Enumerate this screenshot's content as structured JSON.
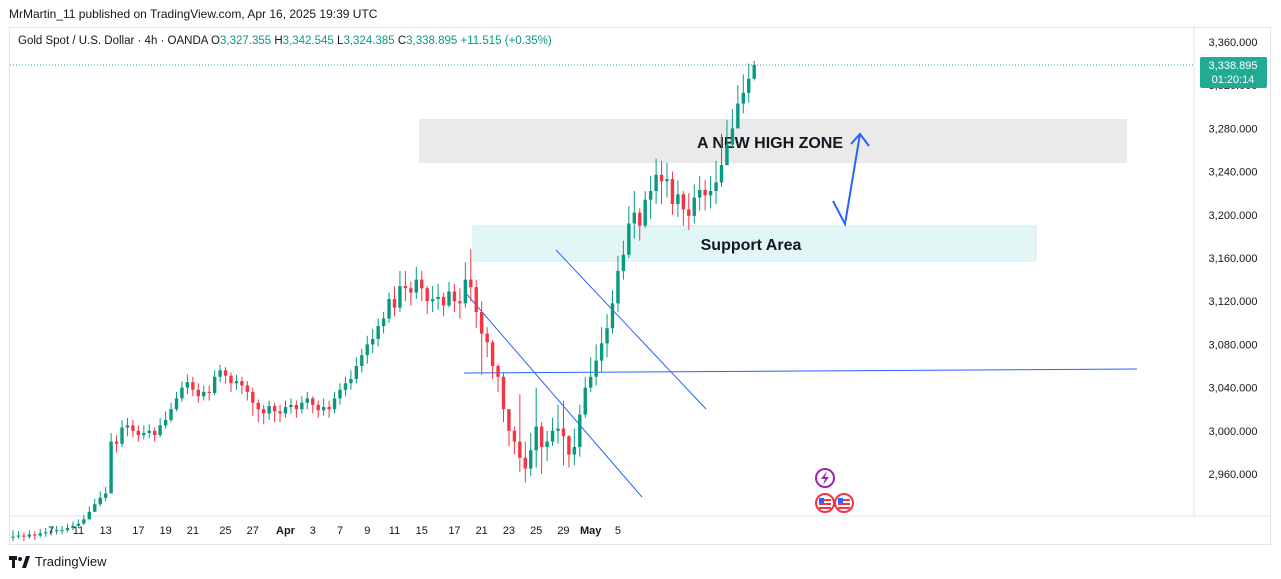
{
  "header": {
    "published_by": "MrMartin_11 published on TradingView.com, Apr 16, 2025 19:39 UTC"
  },
  "legend": {
    "symbol": "Gold Spot / U.S. Dollar · 4h · OANDA",
    "open_key": "O",
    "open": "3,327.355",
    "high_key": "H",
    "high": "3,342.545",
    "low_key": "L",
    "low": "3,324.385",
    "close_key": "C",
    "close": "3,338.895",
    "change": "+11.515 (+0.35%)"
  },
  "price_tag": {
    "price": "3,338.895",
    "countdown": "01:20:14"
  },
  "annotations": {
    "high_zone": "A NEW HIGH ZONE",
    "support": "Support Area"
  },
  "footer": {
    "brand": "TradingView"
  },
  "colors": {
    "up": "#089981",
    "down": "#f23645",
    "accent": "#2962ff",
    "price_tag": "#22ab94"
  },
  "chart_data": {
    "type": "candlestick",
    "ylim": [
      2925,
      3370
    ],
    "y_ticks": [
      "3,360.000",
      "3,320.000",
      "3,280.000",
      "3,240.000",
      "3,200.000",
      "3,160.000",
      "3,120.000",
      "3,080.000",
      "3,040.000",
      "3,000.000",
      "2,960.000"
    ],
    "x_ticks": [
      {
        "label": "7",
        "i": 7
      },
      {
        "label": "11",
        "i": 12
      },
      {
        "label": "13",
        "i": 17
      },
      {
        "label": "17",
        "i": 23
      },
      {
        "label": "19",
        "i": 28
      },
      {
        "label": "21",
        "i": 33
      },
      {
        "label": "25",
        "i": 39
      },
      {
        "label": "27",
        "i": 44
      },
      {
        "label": "Apr",
        "i": 50
      },
      {
        "label": "3",
        "i": 55
      },
      {
        "label": "7",
        "i": 60
      },
      {
        "label": "9",
        "i": 65
      },
      {
        "label": "11",
        "i": 70
      },
      {
        "label": "15",
        "i": 75
      },
      {
        "label": "17",
        "i": 81
      },
      {
        "label": "21",
        "i": 86
      },
      {
        "label": "23",
        "i": 91
      },
      {
        "label": "25",
        "i": 96
      },
      {
        "label": "29",
        "i": 101
      },
      {
        "label": "May",
        "i": 106
      },
      {
        "label": "5",
        "i": 111
      }
    ],
    "close": [
      2902,
      2903,
      2902,
      2904,
      2903,
      2905,
      2906,
      2907,
      2908,
      2908,
      2910,
      2912,
      2914,
      2918,
      2925,
      2932,
      2938,
      2942,
      2990,
      2988,
      3003,
      3005,
      3000,
      2996,
      2998,
      3000,
      2996,
      3005,
      3010,
      3020,
      3030,
      3040,
      3045,
      3038,
      3032,
      3036,
      3035,
      3050,
      3056,
      3051,
      3044,
      3046,
      3042,
      3036,
      3026,
      3020,
      3016,
      3023,
      3018,
      3016,
      3022,
      3024,
      3020,
      3026,
      3030,
      3024,
      3019,
      3022,
      3020,
      3030,
      3038,
      3044,
      3048,
      3060,
      3070,
      3080,
      3085,
      3097,
      3104,
      3122,
      3114,
      3134,
      3132,
      3128,
      3140,
      3132,
      3120,
      3122,
      3124,
      3116,
      3129,
      3120,
      3118,
      3140,
      3133,
      3110,
      3090,
      3082,
      3060,
      3050,
      3020,
      3000,
      2990,
      2975,
      2965,
      2982,
      3004,
      2985,
      2990,
      3000,
      3002,
      2995,
      2978,
      2985,
      3015,
      3040,
      3050,
      3065,
      3081,
      3095,
      3118,
      3148,
      3163,
      3192,
      3202,
      3190,
      3214,
      3222,
      3237,
      3231,
      3233,
      3210,
      3219,
      3205,
      3199,
      3216,
      3223,
      3218,
      3222,
      3230,
      3246,
      3265,
      3280,
      3303,
      3313,
      3326,
      3338.895
    ],
    "range": [
      [
        2898,
        2908
      ],
      [
        2900,
        2907
      ],
      [
        2898,
        2906
      ],
      [
        2900,
        2908
      ],
      [
        2899,
        2907
      ],
      [
        2901,
        2909
      ],
      [
        2902,
        2910
      ],
      [
        2903,
        2911
      ],
      [
        2904,
        2912
      ],
      [
        2904,
        2912
      ],
      [
        2906,
        2914
      ],
      [
        2908,
        2916
      ],
      [
        2910,
        2918
      ],
      [
        2913,
        2922
      ],
      [
        2918,
        2930
      ],
      [
        2925,
        2937
      ],
      [
        2930,
        2944
      ],
      [
        2935,
        2948
      ],
      [
        2945,
        2998
      ],
      [
        2980,
        2996
      ],
      [
        2985,
        3010
      ],
      [
        2995,
        3012
      ],
      [
        2994,
        3010
      ],
      [
        2990,
        3005
      ],
      [
        2992,
        3005
      ],
      [
        2993,
        3006
      ],
      [
        2990,
        3003
      ],
      [
        2994,
        3012
      ],
      [
        3002,
        3018
      ],
      [
        3008,
        3026
      ],
      [
        3018,
        3036
      ],
      [
        3027,
        3046
      ],
      [
        3034,
        3052
      ],
      [
        3032,
        3050
      ],
      [
        3026,
        3044
      ],
      [
        3028,
        3042
      ],
      [
        3028,
        3042
      ],
      [
        3033,
        3056
      ],
      [
        3045,
        3061
      ],
      [
        3044,
        3059
      ],
      [
        3036,
        3054
      ],
      [
        3038,
        3052
      ],
      [
        3034,
        3050
      ],
      [
        3028,
        3046
      ],
      [
        3014,
        3040
      ],
      [
        3008,
        3029
      ],
      [
        3006,
        3024
      ],
      [
        3010,
        3028
      ],
      [
        3008,
        3026
      ],
      [
        3008,
        3024
      ],
      [
        3012,
        3028
      ],
      [
        3016,
        3030
      ],
      [
        3012,
        3028
      ],
      [
        3016,
        3032
      ],
      [
        3020,
        3036
      ],
      [
        3016,
        3032
      ],
      [
        3012,
        3028
      ],
      [
        3014,
        3030
      ],
      [
        3012,
        3028
      ],
      [
        3016,
        3036
      ],
      [
        3024,
        3044
      ],
      [
        3032,
        3050
      ],
      [
        3038,
        3056
      ],
      [
        3044,
        3068
      ],
      [
        3054,
        3076
      ],
      [
        3062,
        3088
      ],
      [
        3072,
        3094
      ],
      [
        3078,
        3104
      ],
      [
        3090,
        3110
      ],
      [
        3100,
        3128
      ],
      [
        3106,
        3134
      ],
      [
        3110,
        3148
      ],
      [
        3120,
        3148
      ],
      [
        3116,
        3138
      ],
      [
        3122,
        3152
      ],
      [
        3120,
        3148
      ],
      [
        3108,
        3134
      ],
      [
        3110,
        3134
      ],
      [
        3112,
        3136
      ],
      [
        3106,
        3128
      ],
      [
        3114,
        3138
      ],
      [
        3110,
        3136
      ],
      [
        3104,
        3132
      ],
      [
        3114,
        3156
      ],
      [
        3120,
        3168
      ],
      [
        3095,
        3140
      ],
      [
        3052,
        3120
      ],
      [
        3068,
        3096
      ],
      [
        3048,
        3084
      ],
      [
        3036,
        3062
      ],
      [
        3008,
        3054
      ],
      [
        2986,
        3018
      ],
      [
        2978,
        3004
      ],
      [
        2962,
        3034
      ],
      [
        2952,
        2990
      ],
      [
        2958,
        2998
      ],
      [
        2966,
        3040
      ],
      [
        2960,
        3008
      ],
      [
        2972,
        3000
      ],
      [
        2986,
        3012
      ],
      [
        2988,
        3024
      ],
      [
        2968,
        3028
      ],
      [
        2966,
        2996
      ],
      [
        2968,
        3002
      ],
      [
        2976,
        3024
      ],
      [
        3012,
        3050
      ],
      [
        3036,
        3068
      ],
      [
        3042,
        3080
      ],
      [
        3054,
        3096
      ],
      [
        3068,
        3108
      ],
      [
        3090,
        3130
      ],
      [
        3110,
        3162
      ],
      [
        3140,
        3176
      ],
      [
        3160,
        3208
      ],
      [
        3178,
        3222
      ],
      [
        3176,
        3206
      ],
      [
        3188,
        3222
      ],
      [
        3196,
        3236
      ],
      [
        3210,
        3252
      ],
      [
        3210,
        3250
      ],
      [
        3216,
        3248
      ],
      [
        3200,
        3240
      ],
      [
        3198,
        3232
      ],
      [
        3190,
        3222
      ],
      [
        3186,
        3220
      ],
      [
        3192,
        3228
      ],
      [
        3204,
        3236
      ],
      [
        3204,
        3232
      ],
      [
        3206,
        3236
      ],
      [
        3210,
        3250
      ],
      [
        3226,
        3275
      ],
      [
        3246,
        3288
      ],
      [
        3262,
        3298
      ],
      [
        3284,
        3320
      ],
      [
        3294,
        3330
      ],
      [
        3304,
        3340
      ],
      [
        3324.385,
        3342.545
      ]
    ]
  }
}
